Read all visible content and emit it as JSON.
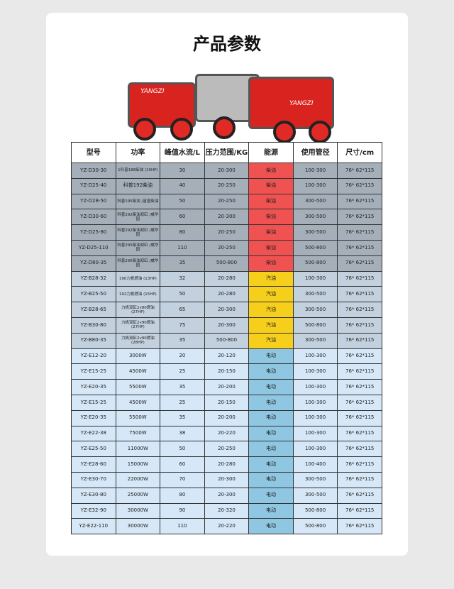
{
  "title": "产品参数",
  "brand": "YANGZI",
  "headers": [
    "型号",
    "功率",
    "峰值水流/L",
    "压力范围/KG",
    "能源",
    "使用管径",
    "尺寸/cm"
  ],
  "rows": [
    {
      "cat": "d",
      "model": "YZ-D30-30",
      "power": "1科普188柴油 (10HP)",
      "flow": "30",
      "pressure": "20-300",
      "energy": "柴油",
      "pipe": "100-300",
      "size": "76* 62*115"
    },
    {
      "cat": "d",
      "model": "YZ-D25-40",
      "power": "科普192柴油",
      "flow": "40",
      "pressure": "20-250",
      "energy": "柴油",
      "pipe": "100-300",
      "size": "76* 62*115"
    },
    {
      "cat": "d",
      "model": "YZ-D28-50",
      "power": "科普195柴油 /富普柴油",
      "flow": "50",
      "pressure": "20-250",
      "energy": "柴油",
      "pipe": "300-500",
      "size": "76* 62*115"
    },
    {
      "cat": "d",
      "model": "YZ-D30-60",
      "power": "科普292柴油双缸 /威华园",
      "flow": "60",
      "pressure": "20-300",
      "energy": "柴油",
      "pipe": "300-500",
      "size": "76* 62*115"
    },
    {
      "cat": "d",
      "model": "YZ-D25-80",
      "power": "科普292柴油双缸 /威华园",
      "flow": "80",
      "pressure": "20-250",
      "energy": "柴油",
      "pipe": "300-500",
      "size": "76* 62*115"
    },
    {
      "cat": "d",
      "model": "YZ-D25-110",
      "power": "科普295柴油双缸 /威华园",
      "flow": "110",
      "pressure": "20-250",
      "energy": "柴油",
      "pipe": "500-800",
      "size": "76* 62*115"
    },
    {
      "cat": "d",
      "model": "YZ-D80-35",
      "power": "科普295柴油双缸 /威华园",
      "flow": "35",
      "pressure": "500-800",
      "energy": "柴油",
      "pipe": "500-800",
      "size": "76* 62*115"
    },
    {
      "cat": "g",
      "model": "YZ-B28-32",
      "power": "190力帆燃油 (13HP)",
      "flow": "32",
      "pressure": "20-280",
      "energy": "汽油",
      "pipe": "100-300",
      "size": "76* 62*115"
    },
    {
      "cat": "g",
      "model": "YZ-B25-50",
      "power": "192力帆燃油 (15HP)",
      "flow": "50",
      "pressure": "20-280",
      "energy": "汽油",
      "pipe": "300-500",
      "size": "76* 62*115"
    },
    {
      "cat": "g",
      "model": "YZ-B28-65",
      "power": "力帆双缸2v80燃油 (27HP)",
      "flow": "65",
      "pressure": "20-300",
      "energy": "汽油",
      "pipe": "300-500",
      "size": "76* 62*115"
    },
    {
      "cat": "g",
      "model": "YZ-B30-80",
      "power": "力帆双缸2v90燃油 (27HP)",
      "flow": "75",
      "pressure": "20-300",
      "energy": "汽油",
      "pipe": "500-800",
      "size": "76* 62*115"
    },
    {
      "cat": "g",
      "model": "YZ-B80-35",
      "power": "力帆双缸2v90燃油 (28HP)",
      "flow": "35",
      "pressure": "500-800",
      "energy": "汽油",
      "pipe": "300-500",
      "size": "76* 62*115"
    },
    {
      "cat": "e",
      "model": "YZ-E12-20",
      "power": "3000W",
      "flow": "20",
      "pressure": "20-120",
      "energy": "电动",
      "pipe": "100-300",
      "size": "76* 62*115"
    },
    {
      "cat": "e",
      "model": "YZ-E15-25",
      "power": "4500W",
      "flow": "25",
      "pressure": "20-150",
      "energy": "电动",
      "pipe": "100-300",
      "size": "76* 62*115"
    },
    {
      "cat": "e",
      "model": "YZ-E20-35",
      "power": "5500W",
      "flow": "35",
      "pressure": "20-200",
      "energy": "电动",
      "pipe": "100-300",
      "size": "76* 62*115"
    },
    {
      "cat": "e",
      "model": "YZ-E15-25",
      "power": "4500W",
      "flow": "25",
      "pressure": "20-150",
      "energy": "电动",
      "pipe": "100-300",
      "size": "76* 62*115"
    },
    {
      "cat": "e",
      "model": "YZ-E20-35",
      "power": "5500W",
      "flow": "35",
      "pressure": "20-200",
      "energy": "电动",
      "pipe": "100-300",
      "size": "76* 62*115"
    },
    {
      "cat": "e",
      "model": "YZ-E22-38",
      "power": "7500W",
      "flow": "38",
      "pressure": "20-220",
      "energy": "电动",
      "pipe": "100-300",
      "size": "76* 62*115"
    },
    {
      "cat": "e",
      "model": "YZ-E25-50",
      "power": "11000W",
      "flow": "50",
      "pressure": "20-250",
      "energy": "电动",
      "pipe": "100-300",
      "size": "76* 62*115"
    },
    {
      "cat": "e",
      "model": "YZ-E28-60",
      "power": "15000W",
      "flow": "60",
      "pressure": "20-280",
      "energy": "电动",
      "pipe": "100-400",
      "size": "76* 62*115"
    },
    {
      "cat": "e",
      "model": "YZ-E30-70",
      "power": "22000W",
      "flow": "70",
      "pressure": "20-300",
      "energy": "电动",
      "pipe": "300-500",
      "size": "76* 62*115"
    },
    {
      "cat": "e",
      "model": "YZ-E30-80",
      "power": "25000W",
      "flow": "80",
      "pressure": "20-300",
      "energy": "电动",
      "pipe": "300-500",
      "size": "76* 62*115"
    },
    {
      "cat": "e",
      "model": "YZ-E32-90",
      "power": "30000W",
      "flow": "90",
      "pressure": "20-320",
      "energy": "电动",
      "pipe": "500-800",
      "size": "76* 62*115"
    },
    {
      "cat": "e",
      "model": "YZ-E22-110",
      "power": "30000W",
      "flow": "110",
      "pressure": "20-220",
      "energy": "电动",
      "pipe": "500-800",
      "size": "76* 62*115"
    }
  ]
}
